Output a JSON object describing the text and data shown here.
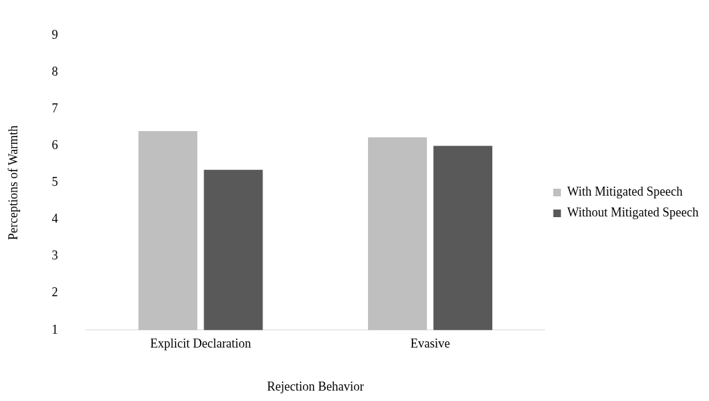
{
  "chart_data": {
    "type": "bar",
    "xlabel": "Rejection Behavior",
    "ylabel": "Perceptions of Warmth",
    "categories": [
      "Explicit Declaration",
      "Evasive"
    ],
    "series": [
      {
        "name": "With Mitigated Speech",
        "color": "#bfbfbf",
        "values": [
          6.4,
          6.23
        ]
      },
      {
        "name": "Without Mitigated Speech",
        "color": "#595959",
        "values": [
          5.35,
          6.0
        ]
      }
    ],
    "ylim": [
      1,
      9
    ],
    "yticks": [
      1,
      2,
      3,
      4,
      5,
      6,
      7,
      8,
      9
    ],
    "grid": false,
    "legend": "right"
  }
}
